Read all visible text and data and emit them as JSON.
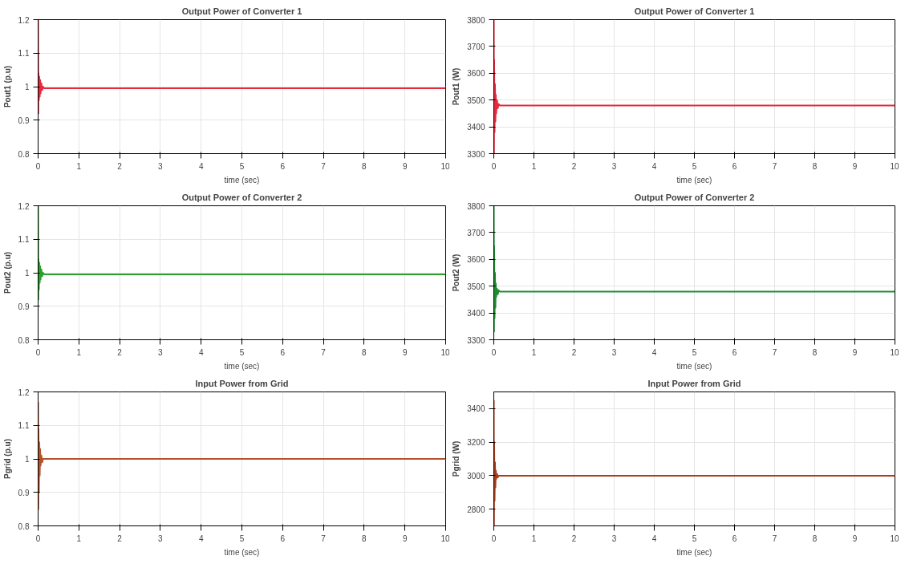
{
  "chart_data": [
    {
      "type": "line",
      "title": "Output Power of Converter 1",
      "xlabel": "time (sec)",
      "ylabel": "Pout1 (p.u)",
      "xlim": [
        0,
        10
      ],
      "xticks": [
        0,
        1,
        2,
        3,
        4,
        5,
        6,
        7,
        8,
        9,
        10
      ],
      "ylim": [
        0.8,
        1.2
      ],
      "yticks": [
        0.8,
        0.9,
        1,
        1.1,
        1.2
      ],
      "grid": true,
      "series": [
        {
          "color": "#e8283c",
          "x": [
            0,
            0.005,
            0.01,
            0.02,
            0.03,
            0.04,
            0.05,
            0.06,
            0.08,
            0.1,
            0.12,
            0.15,
            0.2,
            10
          ],
          "values": [
            1.2,
            0.92,
            1.04,
            0.96,
            1.03,
            0.97,
            1.02,
            0.98,
            1.01,
            0.99,
            1.0,
            0.995,
            0.995,
            0.995
          ]
        }
      ]
    },
    {
      "type": "line",
      "title": "Output Power of Converter 1",
      "xlabel": "time (sec)",
      "ylabel": "Pout1 (W)",
      "xlim": [
        0,
        10
      ],
      "xticks": [
        0,
        1,
        2,
        3,
        4,
        5,
        6,
        7,
        8,
        9,
        10
      ],
      "ylim": [
        3300,
        3800
      ],
      "yticks": [
        3300,
        3400,
        3500,
        3600,
        3700,
        3800
      ],
      "grid": true,
      "series": [
        {
          "color": "#e8283c",
          "x": [
            0,
            0.005,
            0.01,
            0.02,
            0.03,
            0.04,
            0.05,
            0.06,
            0.08,
            0.1,
            0.12,
            0.15,
            0.2,
            10
          ],
          "values": [
            3800,
            3300,
            3650,
            3380,
            3560,
            3420,
            3520,
            3450,
            3500,
            3470,
            3485,
            3480,
            3480,
            3480
          ]
        }
      ]
    },
    {
      "type": "line",
      "title": "Output Power of Converter 2",
      "xlabel": "time (sec)",
      "ylabel": "Pout2 (p.u)",
      "xlim": [
        0,
        10
      ],
      "xticks": [
        0,
        1,
        2,
        3,
        4,
        5,
        6,
        7,
        8,
        9,
        10
      ],
      "ylim": [
        0.8,
        1.2
      ],
      "yticks": [
        0.8,
        0.9,
        1,
        1.1,
        1.2
      ],
      "grid": true,
      "series": [
        {
          "color": "#2ca02c",
          "x": [
            0,
            0.005,
            0.01,
            0.02,
            0.03,
            0.04,
            0.05,
            0.06,
            0.08,
            0.1,
            0.12,
            0.15,
            0.2,
            10
          ],
          "values": [
            1.2,
            0.92,
            1.04,
            0.95,
            1.03,
            0.97,
            1.02,
            0.98,
            1.01,
            0.99,
            1.0,
            0.995,
            0.995,
            0.995
          ]
        }
      ]
    },
    {
      "type": "line",
      "title": "Output Power of Converter 2",
      "xlabel": "time (sec)",
      "ylabel": "Pout2 (W)",
      "xlim": [
        0,
        10
      ],
      "xticks": [
        0,
        1,
        2,
        3,
        4,
        5,
        6,
        7,
        8,
        9,
        10
      ],
      "ylim": [
        3300,
        3800
      ],
      "yticks": [
        3300,
        3400,
        3500,
        3600,
        3700,
        3800
      ],
      "grid": true,
      "series": [
        {
          "color": "#1e8c32",
          "x": [
            0,
            0.005,
            0.01,
            0.02,
            0.03,
            0.04,
            0.05,
            0.06,
            0.08,
            0.1,
            0.12,
            0.15,
            0.2,
            10
          ],
          "values": [
            3800,
            3330,
            3650,
            3380,
            3550,
            3420,
            3510,
            3460,
            3490,
            3470,
            3485,
            3480,
            3480,
            3480
          ]
        }
      ]
    },
    {
      "type": "line",
      "title": "Input Power from Grid",
      "xlabel": "time (sec)",
      "ylabel": "Pgrid (p.u)",
      "xlim": [
        0,
        10
      ],
      "xticks": [
        0,
        1,
        2,
        3,
        4,
        5,
        6,
        7,
        8,
        9,
        10
      ],
      "ylim": [
        0.8,
        1.2
      ],
      "yticks": [
        0.8,
        0.9,
        1,
        1.1,
        1.2
      ],
      "grid": true,
      "series": [
        {
          "color": "#b4522a",
          "x": [
            0,
            0.005,
            0.01,
            0.02,
            0.03,
            0.04,
            0.05,
            0.06,
            0.08,
            0.1,
            0.12,
            0.15,
            0.2,
            10
          ],
          "values": [
            1.17,
            0.85,
            1.09,
            0.9,
            1.05,
            0.95,
            1.03,
            0.98,
            1.01,
            0.99,
            1.0,
            1.0,
            1.0,
            1.0
          ]
        }
      ]
    },
    {
      "type": "line",
      "title": "Input Power from Grid",
      "xlabel": "time (sec)",
      "ylabel": "Pgrid (W)",
      "xlim": [
        0,
        10
      ],
      "xticks": [
        0,
        1,
        2,
        3,
        4,
        5,
        6,
        7,
        8,
        9,
        10
      ],
      "ylim": [
        2700,
        3500
      ],
      "yticks": [
        2800,
        3000,
        3200,
        3400
      ],
      "grid": true,
      "series": [
        {
          "color": "#a83c1e",
          "x": [
            0,
            0.005,
            0.01,
            0.02,
            0.03,
            0.04,
            0.05,
            0.06,
            0.08,
            0.1,
            0.12,
            0.15,
            0.2,
            10
          ],
          "values": [
            3450,
            2700,
            3200,
            2850,
            3080,
            2930,
            3030,
            2980,
            3010,
            2990,
            3000,
            3000,
            3000,
            3000
          ]
        }
      ]
    }
  ]
}
